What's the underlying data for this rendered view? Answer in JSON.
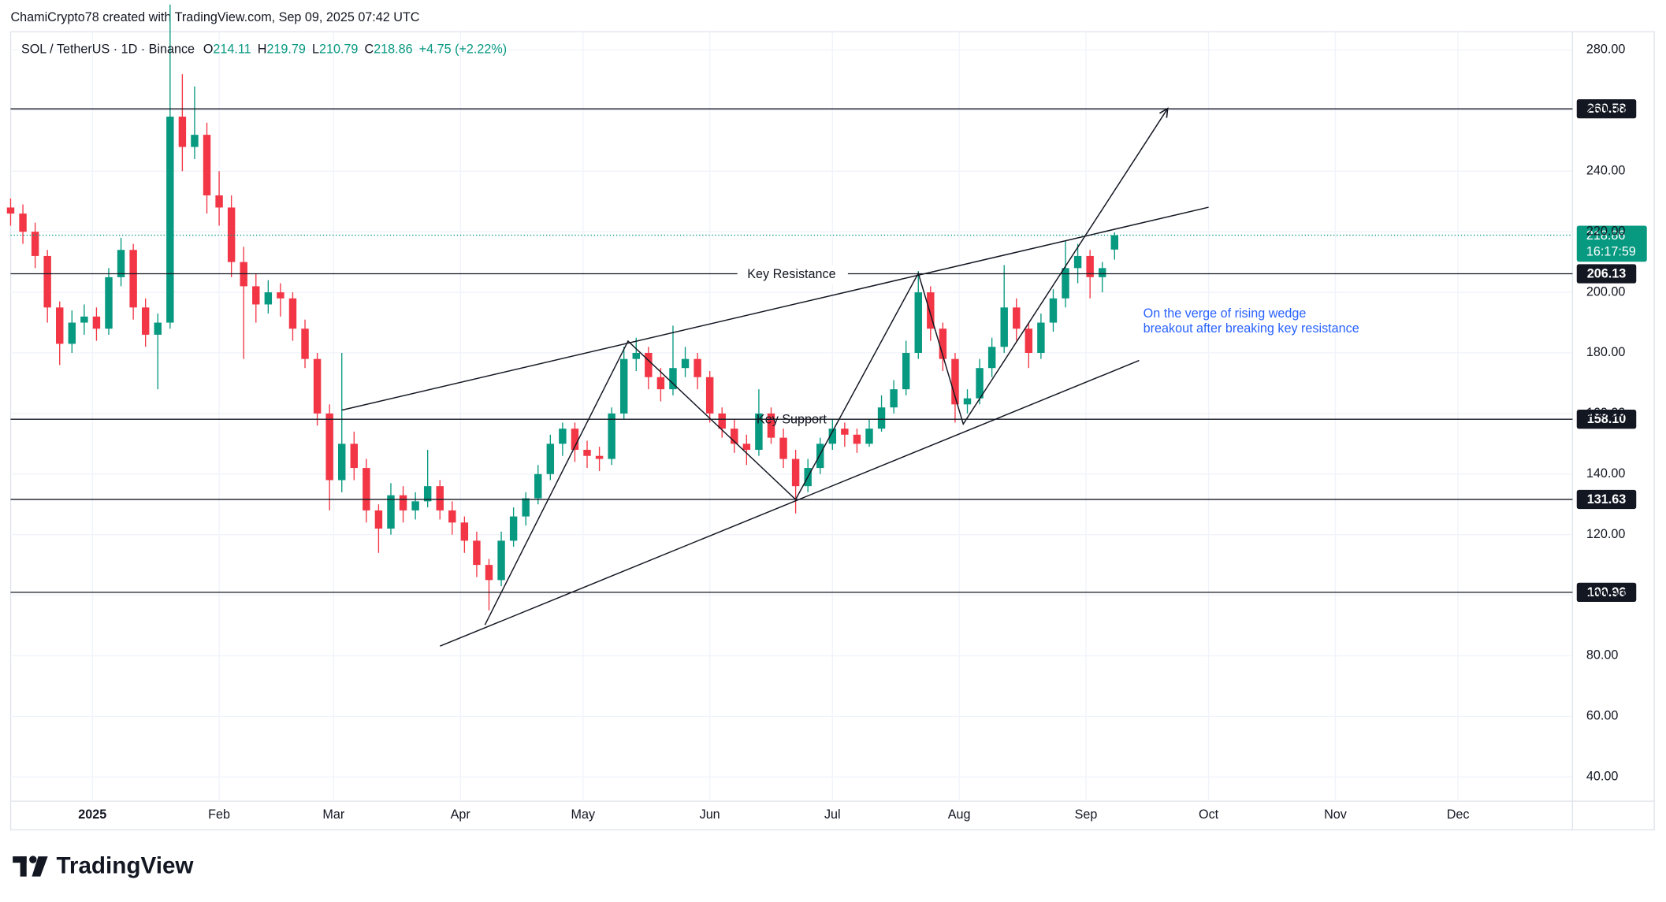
{
  "chart_data": {
    "type": "candlestick",
    "attribution": "ChamiCrypto78 created with TradingView.com, Sep 09, 2025 07:42 UTC",
    "title": "SOL / TetherUS · 1D · Binance",
    "legend": [
      {
        "label": "O",
        "value": 214.11
      },
      {
        "label": "H",
        "value": 219.79
      },
      {
        "label": "L",
        "value": 210.79
      },
      {
        "label": "C",
        "value": 218.86
      }
    ],
    "change": "+4.75 (+2.22%)",
    "brand": "TradingView",
    "up_color": "#089981",
    "down_color": "#f23645",
    "grid": true,
    "xlim": [
      -20,
      362
    ],
    "ylim": [
      32,
      286
    ],
    "xticks": [
      {
        "value": 0,
        "label": "2025"
      },
      {
        "value": 31,
        "label": "Feb"
      },
      {
        "value": 59,
        "label": "Mar"
      },
      {
        "value": 90,
        "label": "Apr"
      },
      {
        "value": 120,
        "label": "May"
      },
      {
        "value": 151,
        "label": "Jun"
      },
      {
        "value": 181,
        "label": "Jul"
      },
      {
        "value": 212,
        "label": "Aug"
      },
      {
        "value": 243,
        "label": "Sep"
      },
      {
        "value": 273,
        "label": "Oct"
      },
      {
        "value": 304,
        "label": "Nov"
      },
      {
        "value": 334,
        "label": "Dec"
      }
    ],
    "yticks": [
      {
        "value": 40,
        "label": "40.00"
      },
      {
        "value": 60,
        "label": "60.00"
      },
      {
        "value": 80,
        "label": "80.00"
      },
      {
        "value": 100,
        "label": "100.00"
      },
      {
        "value": 120,
        "label": "120.00"
      },
      {
        "value": 140,
        "label": "140.00"
      },
      {
        "value": 160,
        "label": "160.00"
      },
      {
        "value": 180,
        "label": "180.00"
      },
      {
        "value": 200,
        "label": "200.00"
      },
      {
        "value": 220,
        "label": "220.00"
      },
      {
        "value": 240,
        "label": "240.00"
      },
      {
        "value": 260,
        "label": "260.00"
      },
      {
        "value": 280,
        "label": "280.00"
      }
    ],
    "levels": [
      {
        "value": 260.58,
        "label": "260.58"
      },
      {
        "value": 206.13,
        "label": "206.13"
      },
      {
        "value": 158.1,
        "label": "158.10"
      },
      {
        "value": 131.63,
        "label": "131.63"
      },
      {
        "value": 100.96,
        "label": "100.96"
      }
    ],
    "last_price": {
      "value": 218.86,
      "label": "218.86",
      "countdown": "16:17:59"
    },
    "annotations": [
      "Key Resistance",
      "Key Support",
      "On the verge of rising wedge",
      "breakout after breaking key resistance"
    ],
    "drawings": [
      {
        "x": [
          61,
          273
        ],
        "y": [
          161.1,
          228.1
        ],
        "arrow": false
      },
      {
        "x": [
          85,
          256
        ],
        "y": [
          83.2,
          177.5
        ],
        "arrow": false
      },
      {
        "x": [
          96,
          131,
          172,
          202,
          213,
          263
        ],
        "y": [
          90.2,
          183.9,
          131.6,
          206.3,
          156.5,
          260.7
        ],
        "arrow": true
      }
    ],
    "series": {
      "x": [
        -20,
        -17,
        -14,
        -11,
        -8,
        -5,
        -2,
        1,
        4,
        7,
        10,
        13,
        16,
        19,
        22,
        25,
        28,
        31,
        34,
        37,
        40,
        43,
        46,
        49,
        52,
        55,
        58,
        61,
        64,
        67,
        70,
        73,
        76,
        79,
        82,
        85,
        88,
        91,
        94,
        97,
        100,
        103,
        106,
        109,
        112,
        115,
        118,
        121,
        124,
        127,
        130,
        133,
        136,
        139,
        142,
        145,
        148,
        151,
        154,
        157,
        160,
        163,
        166,
        169,
        172,
        175,
        178,
        181,
        184,
        187,
        190,
        193,
        196,
        199,
        202,
        205,
        208,
        211,
        214,
        217,
        220,
        223,
        226,
        229,
        232,
        235,
        238,
        241,
        244,
        247,
        250
      ],
      "open": [
        228,
        226,
        220,
        212,
        195,
        183,
        190,
        192,
        188,
        205,
        214,
        195,
        186,
        190,
        258,
        248,
        252,
        232,
        228,
        210,
        202,
        196,
        200,
        198,
        188,
        178,
        160,
        138,
        150,
        142,
        128,
        122,
        133,
        128,
        131,
        136,
        128,
        124,
        118,
        110,
        105,
        118,
        126,
        132,
        140,
        150,
        155,
        148,
        146,
        145,
        160,
        178,
        180,
        172,
        168,
        175,
        178,
        172,
        160,
        155,
        150,
        148,
        160,
        152,
        145,
        136,
        142,
        150,
        155,
        153,
        150,
        155,
        162,
        168,
        180,
        200,
        188,
        178,
        163,
        165,
        175,
        182,
        195,
        188,
        180,
        190,
        198,
        208,
        212,
        205,
        214.11
      ],
      "high": [
        231,
        229,
        223,
        214,
        197,
        194,
        196,
        195,
        208,
        218,
        216,
        198,
        193,
        295,
        272,
        268,
        256,
        240,
        232,
        215,
        206,
        204,
        203,
        200,
        191,
        180,
        163,
        180,
        154,
        145,
        130,
        137,
        136,
        134,
        148,
        138,
        131,
        126,
        121,
        112,
        121,
        129,
        134,
        143,
        153,
        157,
        157,
        151,
        149,
        162,
        182,
        185,
        182,
        175,
        189,
        182,
        180,
        174,
        162,
        158,
        153,
        168,
        162,
        155,
        148,
        145,
        152,
        158,
        157,
        155,
        158,
        166,
        171,
        184,
        207,
        202,
        190,
        180,
        168,
        178,
        185,
        209,
        198,
        190,
        193,
        201,
        217,
        216,
        214,
        210,
        219.79
      ],
      "low": [
        222,
        216,
        208,
        190,
        176,
        180,
        186,
        184,
        186,
        202,
        191,
        182,
        168,
        188,
        240,
        244,
        226,
        222,
        205,
        178,
        190,
        193,
        192,
        184,
        175,
        156,
        128,
        134,
        138,
        124,
        114,
        120,
        124,
        125,
        129,
        125,
        120,
        114,
        106,
        95,
        103,
        116,
        123,
        130,
        138,
        146,
        144,
        142,
        141,
        143,
        158,
        174,
        168,
        164,
        166,
        172,
        168,
        157,
        152,
        147,
        143,
        146,
        150,
        142,
        127,
        134,
        140,
        148,
        149,
        147,
        149,
        154,
        160,
        166,
        178,
        184,
        174,
        157,
        160,
        163,
        172,
        180,
        184,
        175,
        178,
        187,
        195,
        203,
        198,
        200,
        210.79
      ],
      "close": [
        226,
        220,
        212,
        195,
        183,
        190,
        192,
        188,
        205,
        214,
        195,
        186,
        190,
        258,
        248,
        252,
        232,
        228,
        210,
        202,
        196,
        200,
        198,
        188,
        178,
        160,
        138,
        150,
        142,
        128,
        122,
        133,
        128,
        131,
        136,
        128,
        124,
        118,
        110,
        105,
        118,
        126,
        132,
        140,
        150,
        155,
        148,
        146,
        145,
        160,
        178,
        180,
        172,
        168,
        175,
        178,
        172,
        160,
        155,
        150,
        148,
        160,
        152,
        145,
        136,
        142,
        150,
        155,
        153,
        150,
        155,
        162,
        168,
        180,
        200,
        188,
        178,
        163,
        165,
        175,
        182,
        195,
        188,
        180,
        190,
        198,
        208,
        212,
        205,
        208,
        218.86
      ]
    }
  }
}
